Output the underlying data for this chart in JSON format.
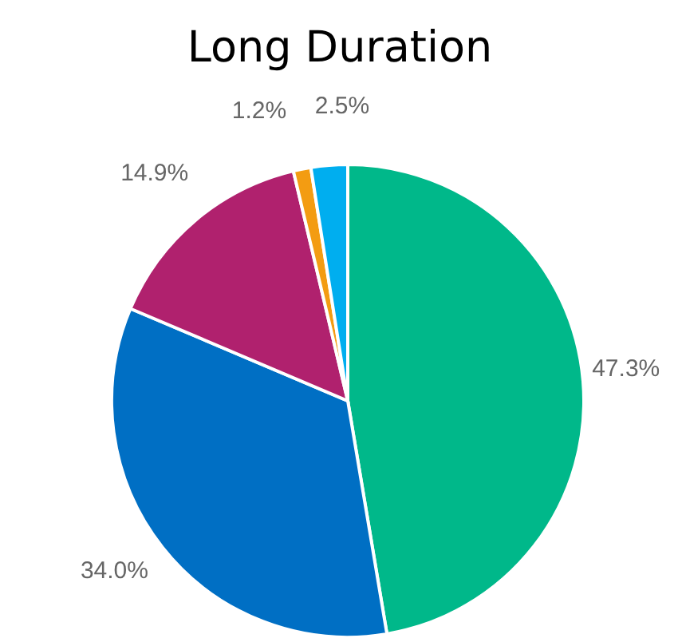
{
  "chart_data": {
    "type": "pie",
    "title": "Long Duration",
    "categories": [
      null,
      null,
      null,
      null,
      null
    ],
    "values": [
      47.3,
      34.0,
      14.9,
      1.2,
      2.5
    ],
    "value_labels": [
      "47.3%",
      "34.0%",
      "14.9%",
      "1.2%",
      "2.5%"
    ],
    "colors": [
      "#00b88a",
      "#006fc4",
      "#b0216e",
      "#f39c12",
      "#00aeef"
    ],
    "legend": false
  }
}
